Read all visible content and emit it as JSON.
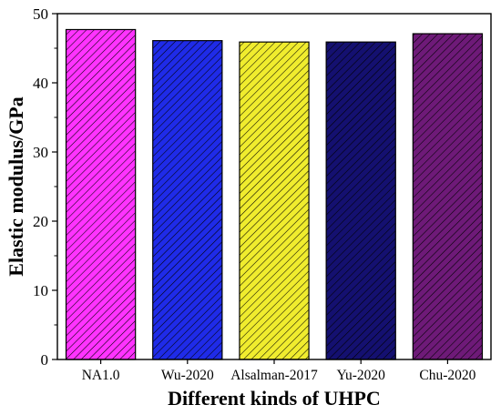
{
  "chart_data": {
    "type": "bar",
    "categories": [
      "NA1.0",
      "Wu-2020",
      "Alsalman-2017",
      "Yu-2020",
      "Chu-2020"
    ],
    "values": [
      47.7,
      46.1,
      45.9,
      45.9,
      47.1
    ],
    "colors": [
      "#ff33ff",
      "#1f2be8",
      "#f0ec2e",
      "#141070",
      "#6e1a78"
    ],
    "hatch": "diagonal",
    "title": "",
    "xlabel": "Different kinds of UHPC",
    "ylabel": "Elastic modulus/GPa",
    "ylim": [
      0,
      50
    ],
    "yticks": [
      0,
      10,
      20,
      30,
      40,
      50
    ],
    "grid": false
  }
}
